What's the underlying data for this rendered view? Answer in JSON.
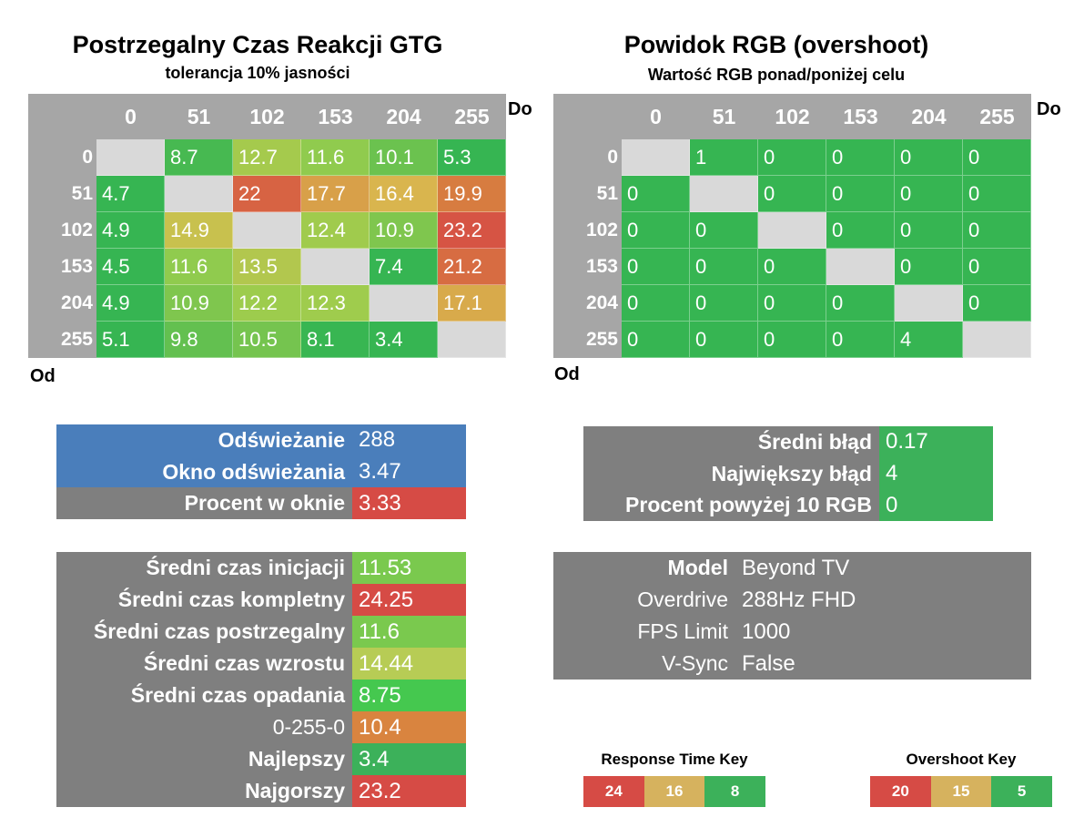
{
  "colors": {
    "header_gray": "#a6a6a6",
    "panel_gray": "#7f7f7f",
    "panel_blue": "#4a7ebb",
    "diag": "#d9d9d9",
    "good": "#3cb15a",
    "mid": "#d6b25e",
    "bad": "#d64b45"
  },
  "gtg": {
    "title": "Postrzegalny Czas Reakcji GTG",
    "subtitle": "tolerancja 10% jasności",
    "to_label": "Do",
    "from_label": "Od"
  },
  "overshoot": {
    "title": "Powidok RGB (overshoot)",
    "subtitle": "Wartość RGB ponad/poniżej celu",
    "to_label": "Do",
    "from_label": "Od"
  },
  "chart_data": [
    {
      "type": "heatmap",
      "title": "Postrzegalny Czas Reakcji GTG",
      "subtitle": "tolerancja 10% jasności",
      "xlabel": "Do",
      "ylabel": "Od",
      "x": [
        "0",
        "51",
        "102",
        "153",
        "204",
        "255"
      ],
      "y": [
        "0",
        "51",
        "102",
        "153",
        "204",
        "255"
      ],
      "values": [
        [
          null,
          8.7,
          12.7,
          11.6,
          10.1,
          5.3
        ],
        [
          4.7,
          null,
          22,
          17.7,
          16.4,
          19.9
        ],
        [
          4.9,
          14.9,
          null,
          12.4,
          10.9,
          23.2
        ],
        [
          4.5,
          11.6,
          13.5,
          null,
          7.4,
          21.2
        ],
        [
          4.9,
          10.9,
          12.2,
          12.3,
          null,
          17.1
        ],
        [
          5.1,
          9.8,
          10.5,
          8.1,
          3.4,
          null
        ]
      ],
      "color_scale": {
        "good": 8,
        "mid": 16,
        "bad": 24
      }
    },
    {
      "type": "heatmap",
      "title": "Powidok RGB (overshoot)",
      "subtitle": "Wartość RGB ponad/poniżej celu",
      "xlabel": "Do",
      "ylabel": "Od",
      "x": [
        "0",
        "51",
        "102",
        "153",
        "204",
        "255"
      ],
      "y": [
        "0",
        "51",
        "102",
        "153",
        "204",
        "255"
      ],
      "values": [
        [
          null,
          1,
          0,
          0,
          0,
          0
        ],
        [
          0,
          null,
          0,
          0,
          0,
          0
        ],
        [
          0,
          0,
          null,
          0,
          0,
          0
        ],
        [
          0,
          0,
          0,
          null,
          0,
          0
        ],
        [
          0,
          0,
          0,
          0,
          null,
          0
        ],
        [
          0,
          0,
          0,
          0,
          4,
          null
        ]
      ],
      "color_scale": {
        "good": 5,
        "mid": 15,
        "bad": 20
      }
    }
  ],
  "refresh_panel": [
    {
      "label": "Odświeżanie",
      "value": "288",
      "label_color": "#4a7ebb",
      "value_color": "#4a7ebb"
    },
    {
      "label": "Okno odświeżania",
      "value": "3.47",
      "label_color": "#4a7ebb",
      "value_color": "#4a7ebb"
    },
    {
      "label": "Procent w oknie",
      "value": "3.33",
      "label_color": "#7f7f7f",
      "value_color": "#d64b45"
    }
  ],
  "error_panel": [
    {
      "label": "Średni błąd",
      "value": "0.17",
      "value_color": "#3cb15a"
    },
    {
      "label": "Największy błąd",
      "value": "4",
      "value_color": "#3cb15a"
    },
    {
      "label": "Procent powyżej 10 RGB",
      "value": "0",
      "value_color": "#3cb15a"
    }
  ],
  "stats_panel": [
    {
      "label": "Średni czas inicjacji",
      "value": "11.53",
      "value_color": "#7ac94e"
    },
    {
      "label": "Średni czas kompletny",
      "value": "24.25",
      "value_color": "#d64b45"
    },
    {
      "label": "Średni czas postrzegalny",
      "value": "11.6",
      "value_color": "#7ac94e"
    },
    {
      "label": "Średni czas wzrostu",
      "value": "14.44",
      "value_color": "#b7cc55"
    },
    {
      "label": "Średni czas opadania",
      "value": "8.75",
      "value_color": "#45c84f"
    },
    {
      "label": "0-255-0",
      "value": "10.4",
      "value_color": "#d9843f",
      "plain": true
    },
    {
      "label": "Najlepszy",
      "value": "3.4",
      "value_color": "#3cb15a"
    },
    {
      "label": "Najgorszy",
      "value": "23.2",
      "value_color": "#d64b45"
    }
  ],
  "settings_panel": [
    {
      "label": "Model",
      "value": "Beyond TV",
      "bold": true
    },
    {
      "label": "Overdrive",
      "value": "288Hz FHD",
      "bold": false
    },
    {
      "label": "FPS Limit",
      "value": "1000",
      "bold": false
    },
    {
      "label": "V-Sync",
      "value": "False",
      "bold": false
    }
  ],
  "response_key": {
    "title": "Response Time Key",
    "items": [
      {
        "label": "24",
        "color": "#d64b45"
      },
      {
        "label": "16",
        "color": "#d6b25e"
      },
      {
        "label": "8",
        "color": "#3cb15a"
      }
    ]
  },
  "overshoot_key": {
    "title": "Overshoot Key",
    "items": [
      {
        "label": "20",
        "color": "#d64b45"
      },
      {
        "label": "15",
        "color": "#d6b25e"
      },
      {
        "label": "5",
        "color": "#3cb15a"
      }
    ]
  }
}
